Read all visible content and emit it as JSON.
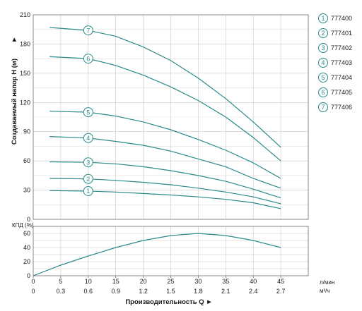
{
  "chart_data": [
    {
      "type": "line",
      "ylabel": "Создаваемый напор H (м)",
      "ylim": [
        0,
        210
      ],
      "yticks": [
        "0",
        "30",
        "60",
        "90",
        "120",
        "150",
        "180",
        "210"
      ],
      "xlim": [
        0,
        50
      ],
      "grid": true,
      "legend_position": "right",
      "x": [
        3,
        10,
        15,
        20,
        25,
        30,
        35,
        40,
        45
      ],
      "series": [
        {
          "name": "777400",
          "label": "1",
          "values": [
            29.5,
            29,
            28,
            26.5,
            25,
            23,
            20.5,
            17,
            11
          ]
        },
        {
          "name": "777401",
          "label": "2",
          "values": [
            42,
            41.5,
            40,
            38,
            35.5,
            32,
            28,
            23,
            16
          ]
        },
        {
          "name": "777402",
          "label": "3",
          "values": [
            59,
            58.5,
            57,
            54,
            50,
            45,
            39,
            31,
            22
          ]
        },
        {
          "name": "777403",
          "label": "4",
          "values": [
            85,
            83.5,
            80,
            76,
            70,
            62,
            54,
            42,
            32
          ]
        },
        {
          "name": "777404",
          "label": "5",
          "values": [
            111,
            110,
            106,
            100,
            92,
            82,
            71,
            58,
            42
          ]
        },
        {
          "name": "777405",
          "label": "6",
          "values": [
            167,
            165,
            158,
            148,
            136,
            122,
            105,
            84,
            60
          ]
        },
        {
          "name": "777406",
          "label": "7",
          "values": [
            197,
            194,
            188,
            177,
            163,
            145,
            124,
            100,
            74
          ]
        }
      ]
    },
    {
      "type": "line",
      "ylabel": "КПД (%)",
      "ylim": [
        0,
        70
      ],
      "yticks": [
        "0",
        "20",
        "40",
        "60"
      ],
      "xlim": [
        0,
        50
      ],
      "grid": true,
      "x": [
        0,
        5,
        10,
        15,
        20,
        25,
        30,
        35,
        40,
        45
      ],
      "series": [
        {
          "values": [
            0,
            15,
            28,
            40,
            50,
            57,
            60,
            57,
            50,
            40
          ]
        }
      ]
    }
  ],
  "x_axis": {
    "primary_ticks": [
      "0",
      "5",
      "10",
      "15",
      "20",
      "25",
      "30",
      "35",
      "40",
      "45"
    ],
    "primary_unit": "л/мин",
    "secondary_ticks": [
      "0",
      "0.3",
      "0.6",
      "0.9",
      "1.2",
      "1.5",
      "1.8",
      "2.1",
      "2.4",
      "2.7"
    ],
    "secondary_unit": "м³/ч",
    "title": "Производительность Q ►"
  },
  "ylabel_arrow": "►",
  "legend": [
    {
      "num": "1",
      "code": "777400"
    },
    {
      "num": "2",
      "code": "777401"
    },
    {
      "num": "3",
      "code": "777402"
    },
    {
      "num": "4",
      "code": "777403"
    },
    {
      "num": "5",
      "code": "777404"
    },
    {
      "num": "6",
      "code": "777405"
    },
    {
      "num": "7",
      "code": "777406"
    }
  ],
  "colors": {
    "curve": "#2a8a8a",
    "grid": "#c9c9c9",
    "frame": "#6a6a6a"
  }
}
